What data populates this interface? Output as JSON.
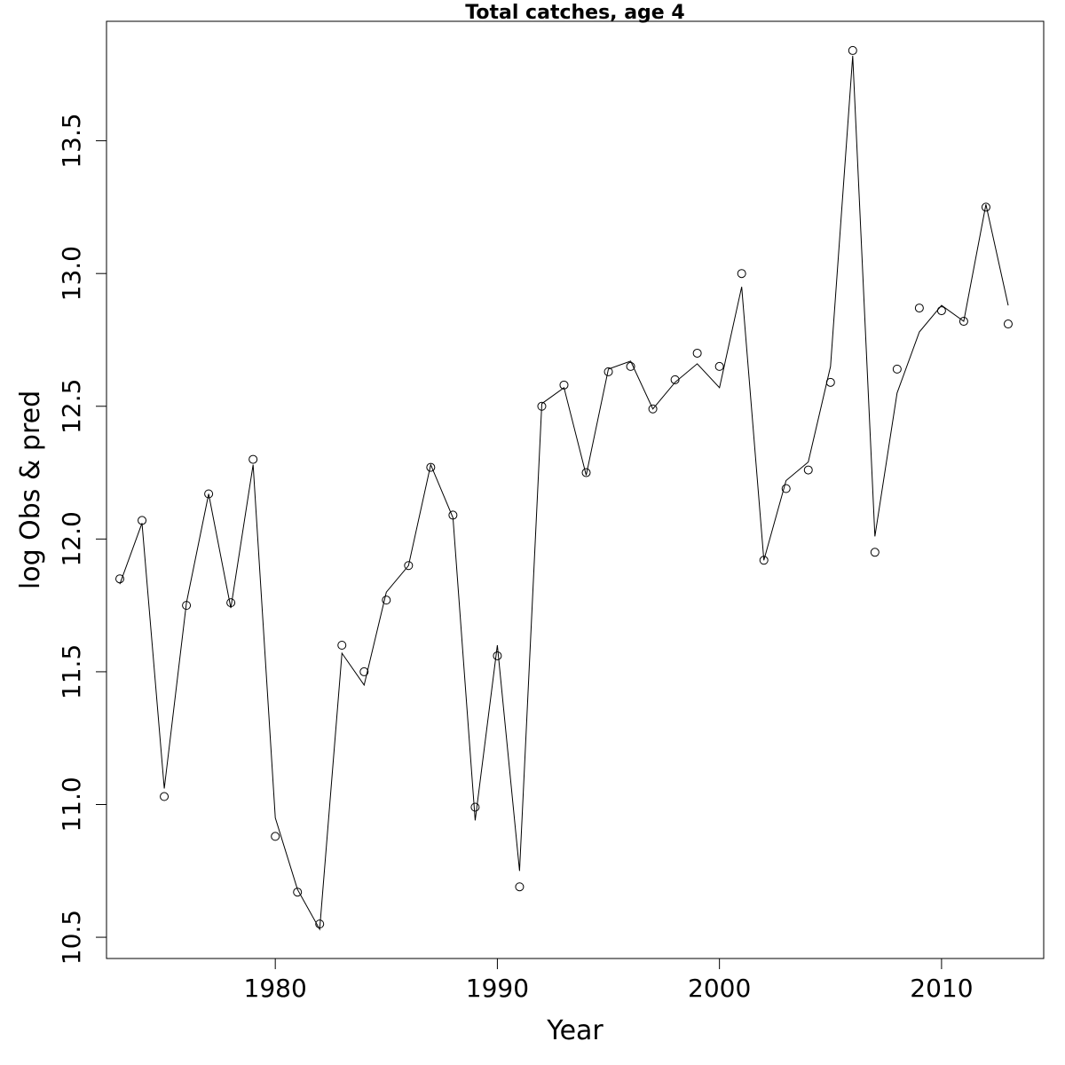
{
  "chart_data": {
    "type": "line",
    "title": "Total catches, age 4",
    "xlabel": "Year",
    "ylabel": "log Obs & pred",
    "xlim": [
      1972.4,
      2014.6
    ],
    "ylim": [
      10.42,
      13.95
    ],
    "x_ticks": [
      1980,
      1990,
      2000,
      2010
    ],
    "x_tick_labels": [
      "1980",
      "1990",
      "2000",
      "2010"
    ],
    "y_ticks": [
      10.5,
      11.0,
      11.5,
      12.0,
      12.5,
      13.0,
      13.5
    ],
    "y_tick_labels": [
      "10.5",
      "11.0",
      "11.5",
      "12.0",
      "12.5",
      "13.0",
      "13.5"
    ],
    "grid": false,
    "legend": "none",
    "x": [
      1973,
      1974,
      1975,
      1976,
      1977,
      1978,
      1979,
      1980,
      1981,
      1982,
      1983,
      1984,
      1985,
      1986,
      1987,
      1988,
      1989,
      1990,
      1991,
      1992,
      1993,
      1994,
      1995,
      1996,
      1997,
      1998,
      1999,
      2000,
      2001,
      2002,
      2003,
      2004,
      2005,
      2006,
      2007,
      2008,
      2009,
      2010,
      2011,
      2012,
      2013
    ],
    "series": [
      {
        "style": "points",
        "marker": "open-circle",
        "values": [
          11.85,
          12.07,
          11.03,
          11.75,
          12.17,
          11.76,
          12.3,
          10.88,
          10.67,
          10.55,
          11.6,
          11.5,
          11.77,
          11.9,
          12.27,
          12.09,
          10.99,
          11.56,
          10.69,
          12.5,
          12.58,
          12.25,
          12.63,
          12.65,
          12.49,
          12.6,
          12.7,
          12.65,
          13.0,
          11.92,
          12.19,
          12.26,
          12.59,
          13.84,
          11.95,
          12.64,
          12.87,
          12.86,
          12.82,
          13.25,
          12.81
        ]
      },
      {
        "style": "line",
        "values": [
          11.83,
          12.06,
          11.06,
          11.76,
          12.17,
          11.74,
          12.28,
          10.95,
          10.68,
          10.53,
          11.57,
          11.45,
          11.8,
          11.9,
          12.28,
          12.08,
          10.94,
          11.6,
          10.75,
          12.51,
          12.57,
          12.24,
          12.64,
          12.67,
          12.49,
          12.59,
          12.66,
          12.57,
          12.95,
          11.92,
          12.22,
          12.29,
          12.65,
          13.82,
          12.01,
          12.55,
          12.78,
          12.88,
          12.82,
          13.26,
          12.88
        ]
      }
    ]
  }
}
